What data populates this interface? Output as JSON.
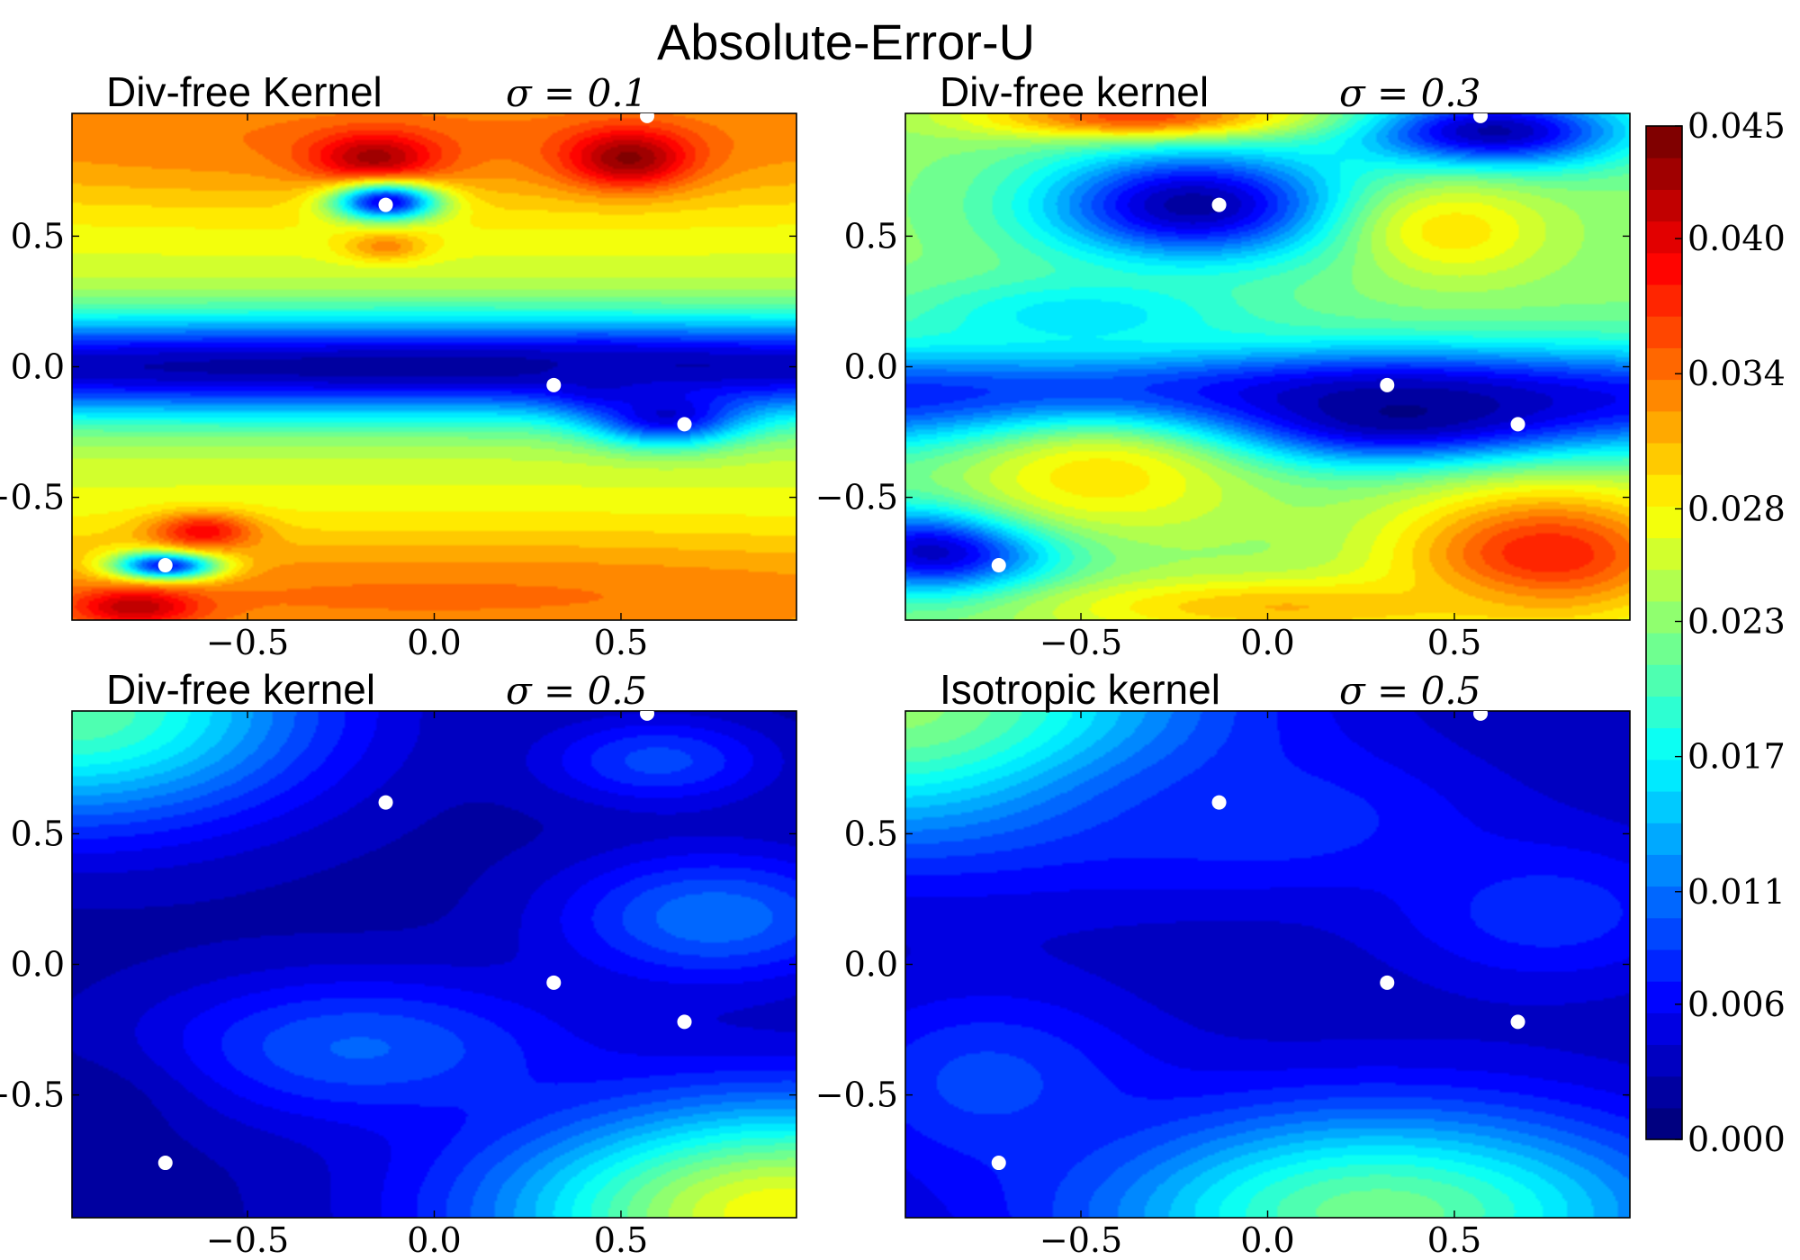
{
  "figure": {
    "suptitle": "Absolute-Error-U"
  },
  "chart_data": [
    {
      "type": "heatmap",
      "panel": "top-left",
      "title": "Div-free Kernel",
      "sigma_label": "σ = 0.1",
      "xlim": [
        -0.97,
        0.97
      ],
      "ylim": [
        -0.97,
        0.97
      ],
      "xticks": [
        "−0.5",
        "0.0",
        "0.5"
      ],
      "yticks": [
        "0.5",
        "0.0",
        "−0.5"
      ],
      "background_value": 0.026,
      "field": [
        {
          "x": 0.0,
          "y": 0.0,
          "value": 0.002,
          "sx": 3.0,
          "sy": 0.14
        },
        {
          "x": 0.0,
          "y": 0.88,
          "value": 0.034,
          "sx": 1.8,
          "sy": 0.22
        },
        {
          "x": 0.0,
          "y": -0.88,
          "value": 0.034,
          "sx": 1.8,
          "sy": 0.2
        },
        {
          "x": -0.16,
          "y": 0.8,
          "value": 0.043,
          "sx": 0.12,
          "sy": 0.07
        },
        {
          "x": 0.52,
          "y": 0.8,
          "value": 0.044,
          "sx": 0.12,
          "sy": 0.08
        },
        {
          "x": -0.13,
          "y": 0.63,
          "value": 0.005,
          "sx": 0.1,
          "sy": 0.05
        },
        {
          "x": -0.13,
          "y": 0.46,
          "value": 0.033,
          "sx": 0.08,
          "sy": 0.04
        },
        {
          "x": 0.62,
          "y": -0.18,
          "value": 0.004,
          "sx": 0.14,
          "sy": 0.08
        },
        {
          "x": 0.45,
          "y": -0.05,
          "value": 0.004,
          "sx": 0.1,
          "sy": 0.07
        },
        {
          "x": -0.72,
          "y": -0.76,
          "value": 0.006,
          "sx": 0.1,
          "sy": 0.04
        },
        {
          "x": -0.62,
          "y": -0.63,
          "value": 0.039,
          "sx": 0.1,
          "sy": 0.05
        },
        {
          "x": -0.8,
          "y": -0.92,
          "value": 0.042,
          "sx": 0.12,
          "sy": 0.05
        }
      ],
      "points": [
        [
          -0.13,
          0.62
        ],
        [
          0.57,
          0.96
        ],
        [
          0.32,
          -0.07
        ],
        [
          0.67,
          -0.22
        ],
        [
          -0.72,
          -0.76
        ]
      ]
    },
    {
      "type": "heatmap",
      "panel": "top-right",
      "title": "Div-free kernel",
      "sigma_label": "σ = 0.3",
      "xlim": [
        -0.97,
        0.97
      ],
      "ylim": [
        -0.97,
        0.97
      ],
      "xticks": [
        "−0.5",
        "0.0",
        "0.5"
      ],
      "yticks": [
        "0.5",
        "0.0",
        "−0.5"
      ],
      "background_value": 0.023,
      "field": [
        {
          "x": 0.0,
          "y": -0.12,
          "value": 0.006,
          "sx": 3.0,
          "sy": 0.14
        },
        {
          "x": 0.35,
          "y": -0.18,
          "value": 0.001,
          "sx": 0.35,
          "sy": 0.12
        },
        {
          "x": -0.2,
          "y": 0.62,
          "value": 0.002,
          "sx": 0.28,
          "sy": 0.15
        },
        {
          "x": 0.6,
          "y": 0.9,
          "value": 0.002,
          "sx": 0.25,
          "sy": 0.1
        },
        {
          "x": -0.88,
          "y": -0.7,
          "value": 0.002,
          "sx": 0.22,
          "sy": 0.12
        },
        {
          "x": -0.45,
          "y": -0.42,
          "value": 0.029,
          "sx": 0.28,
          "sy": 0.16
        },
        {
          "x": 0.5,
          "y": 0.52,
          "value": 0.029,
          "sx": 0.18,
          "sy": 0.13
        },
        {
          "x": 0.75,
          "y": -0.72,
          "value": 0.038,
          "sx": 0.28,
          "sy": 0.18
        },
        {
          "x": -0.35,
          "y": 0.96,
          "value": 0.036,
          "sx": 0.3,
          "sy": 0.06
        },
        {
          "x": 0.05,
          "y": -0.92,
          "value": 0.031,
          "sx": 0.45,
          "sy": 0.08
        },
        {
          "x": -0.5,
          "y": 0.2,
          "value": 0.016,
          "sx": 0.3,
          "sy": 0.1
        }
      ],
      "points": [
        [
          -0.13,
          0.62
        ],
        [
          0.57,
          0.96
        ],
        [
          0.32,
          -0.07
        ],
        [
          0.67,
          -0.22
        ],
        [
          -0.72,
          -0.76
        ]
      ]
    },
    {
      "type": "heatmap",
      "panel": "bottom-left",
      "title": "Div-free kernel",
      "sigma_label": "σ = 0.5",
      "xlim": [
        -0.97,
        0.97
      ],
      "ylim": [
        -0.97,
        0.97
      ],
      "xticks": [
        "−0.5",
        "0.0",
        "0.5"
      ],
      "yticks": [
        "0.5",
        "0.0",
        "−0.5"
      ],
      "background_value": 0.002,
      "field": [
        {
          "x": -0.97,
          "y": 0.97,
          "value": 0.021,
          "sx": 0.45,
          "sy": 0.3
        },
        {
          "x": 0.95,
          "y": -0.95,
          "value": 0.028,
          "sx": 0.55,
          "sy": 0.3
        },
        {
          "x": -0.2,
          "y": -0.32,
          "value": 0.01,
          "sx": 0.4,
          "sy": 0.2
        },
        {
          "x": 0.75,
          "y": 0.18,
          "value": 0.011,
          "sx": 0.3,
          "sy": 0.18
        },
        {
          "x": 0.6,
          "y": 0.78,
          "value": 0.009,
          "sx": 0.22,
          "sy": 0.12
        },
        {
          "x": -0.97,
          "y": -0.55,
          "value": 0.002,
          "sx": 0.2,
          "sy": 0.15
        }
      ],
      "points": [
        [
          -0.13,
          0.62
        ],
        [
          0.57,
          0.96
        ],
        [
          0.32,
          -0.07
        ],
        [
          0.67,
          -0.22
        ],
        [
          -0.72,
          -0.76
        ]
      ]
    },
    {
      "type": "heatmap",
      "panel": "bottom-right",
      "title": "Isotropic kernel",
      "sigma_label": "σ = 0.5",
      "xlim": [
        -0.97,
        0.97
      ],
      "ylim": [
        -0.97,
        0.97
      ],
      "xticks": [
        "−0.5",
        "0.0",
        "0.5"
      ],
      "yticks": [
        "0.5",
        "0.0",
        "−0.5"
      ],
      "background_value": 0.003,
      "field": [
        {
          "x": -0.97,
          "y": 0.97,
          "value": 0.023,
          "sx": 0.55,
          "sy": 0.35
        },
        {
          "x": 0.3,
          "y": -0.95,
          "value": 0.022,
          "sx": 0.55,
          "sy": 0.28
        },
        {
          "x": 0.0,
          "y": 0.55,
          "value": 0.008,
          "sx": 0.4,
          "sy": 0.2
        },
        {
          "x": 0.75,
          "y": 0.2,
          "value": 0.008,
          "sx": 0.3,
          "sy": 0.2
        },
        {
          "x": -0.75,
          "y": -0.45,
          "value": 0.009,
          "sx": 0.3,
          "sy": 0.25
        }
      ],
      "points": [
        [
          -0.13,
          0.62
        ],
        [
          0.57,
          0.96
        ],
        [
          0.32,
          -0.07
        ],
        [
          0.67,
          -0.22
        ],
        [
          -0.72,
          -0.76
        ]
      ]
    }
  ],
  "colorbar": {
    "min": 0.0,
    "max": 0.045,
    "colormap": "jet",
    "tick_values": [
      0.045,
      0.04,
      0.034,
      0.028,
      0.023,
      0.017,
      0.011,
      0.006,
      0.0
    ],
    "tick_labels": [
      "0.045",
      "0.040",
      "0.034",
      "0.028",
      "0.023",
      "0.017",
      "0.011",
      "0.006",
      "0.000"
    ]
  }
}
